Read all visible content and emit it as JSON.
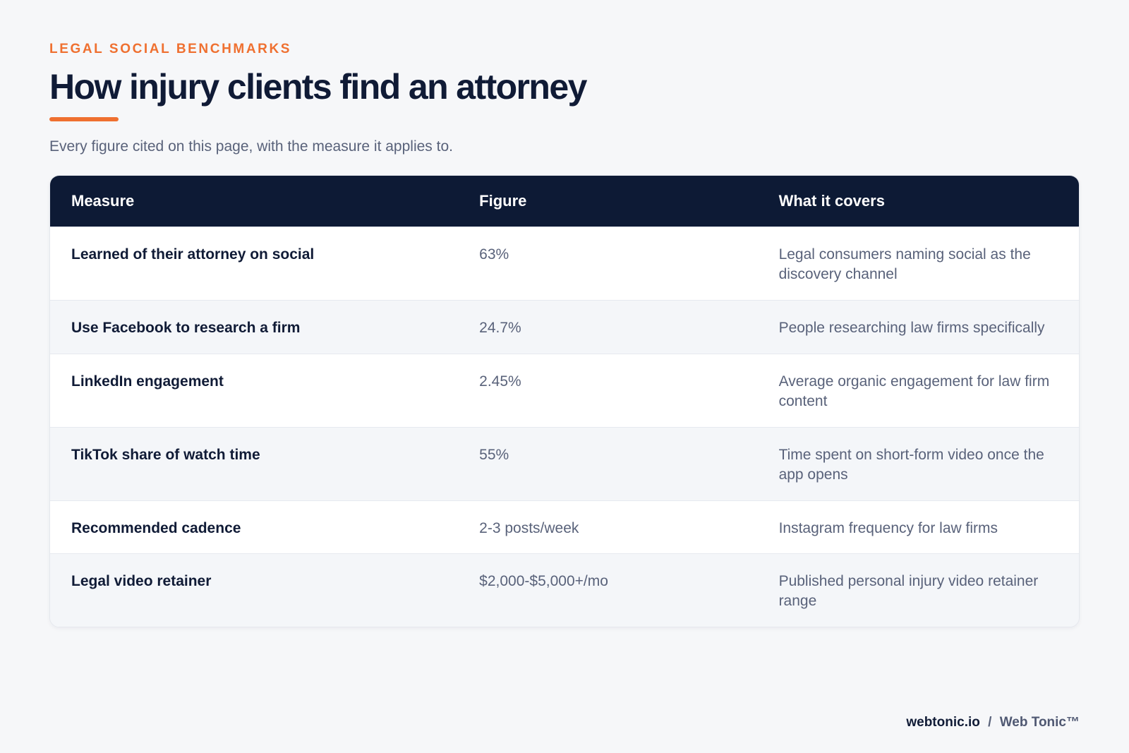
{
  "eyebrow": "LEGAL SOCIAL BENCHMARKS",
  "title": "How injury clients find an attorney",
  "subtitle": "Every figure cited on this page, with the measure it applies to.",
  "table": {
    "headers": [
      "Measure",
      "Figure",
      "What it covers"
    ],
    "rows": [
      {
        "measure": "Learned of their attorney on social",
        "figure": "63%",
        "covers": "Legal consumers naming social as the discovery channel"
      },
      {
        "measure": "Use Facebook to research a firm",
        "figure": "24.7%",
        "covers": "People researching law firms specifically"
      },
      {
        "measure": "LinkedIn engagement",
        "figure": "2.45%",
        "covers": "Average organic engagement for law firm content"
      },
      {
        "measure": "TikTok share of watch time",
        "figure": "55%",
        "covers": "Time spent on short-form video once the app opens"
      },
      {
        "measure": "Recommended cadence",
        "figure": "2-3 posts/week",
        "covers": "Instagram frequency for law firms"
      },
      {
        "measure": "Legal video retainer",
        "figure": "$2,000-$5,000+/mo",
        "covers": "Published personal injury video retainer range"
      }
    ]
  },
  "footer": {
    "site": "webtonic.io",
    "separator": "/",
    "brand": "Web Tonic™"
  },
  "colors": {
    "accent": "#ef7030",
    "navy": "#0d1a35",
    "muted_text": "#59627a",
    "background": "#f6f7f9"
  }
}
